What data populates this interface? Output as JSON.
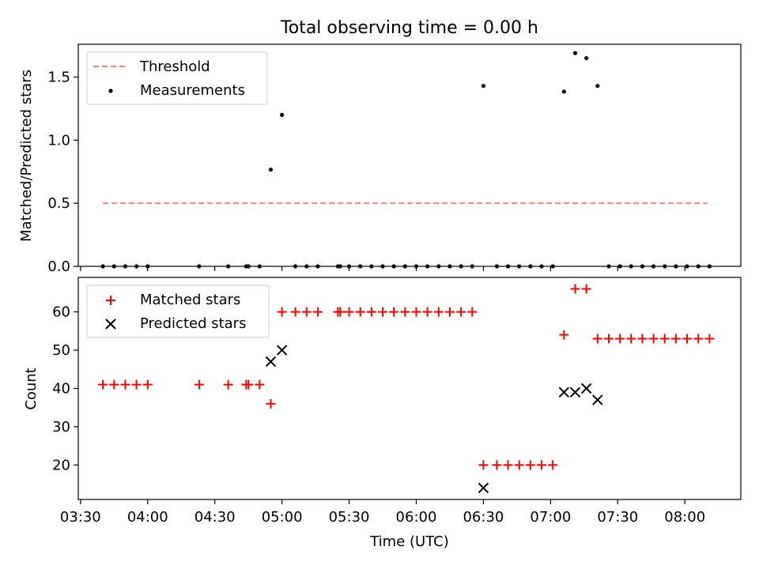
{
  "title": "Total observing time = 0.00 h",
  "chart_data": [
    {
      "type": "scatter",
      "ylabel": "Matched/Predicted stars",
      "ylim": [
        0,
        1.76
      ],
      "xlim": [
        "03:29",
        "08:25"
      ],
      "yticks": [
        0.0,
        0.5,
        1.0,
        1.5
      ],
      "ytick_labels": [
        "0.0",
        "0.5",
        "1.0",
        "1.5"
      ],
      "legend_position": "top-left",
      "threshold": {
        "name": "Threshold",
        "value": 0.5,
        "x_range": [
          "03:40",
          "08:10"
        ],
        "color": "#ff7f7f",
        "style": "dashed"
      },
      "series": [
        {
          "name": "Measurements",
          "marker": "dot",
          "color": "#000000",
          "x": [
            "03:40",
            "03:45",
            "03:50",
            "03:55",
            "04:00",
            "04:23",
            "04:36",
            "04:44",
            "04:45",
            "04:50",
            "04:55",
            "05:00",
            "05:06",
            "05:11",
            "05:16",
            "05:25",
            "05:26",
            "05:30",
            "05:35",
            "05:40",
            "05:45",
            "05:50",
            "05:55",
            "06:00",
            "06:05",
            "06:10",
            "06:15",
            "06:20",
            "06:25",
            "06:30",
            "06:36",
            "06:41",
            "06:46",
            "06:51",
            "06:56",
            "07:01",
            "07:06",
            "07:11",
            "07:16",
            "07:21",
            "07:26",
            "07:31",
            "07:36",
            "07:41",
            "07:46",
            "07:51",
            "07:56",
            "08:01",
            "08:06",
            "08:11"
          ],
          "y": [
            0,
            0,
            0,
            0,
            0,
            0,
            0,
            0,
            0,
            0,
            0.766,
            1.2,
            0,
            0,
            0,
            0,
            0,
            0,
            0,
            0,
            0,
            0,
            0,
            0,
            0,
            0,
            0,
            0,
            0,
            1.43,
            0,
            0,
            0,
            0,
            0,
            0,
            1.385,
            1.69,
            1.65,
            1.43,
            0,
            0,
            0,
            0,
            0,
            0,
            0,
            0,
            0,
            0
          ]
        }
      ]
    },
    {
      "type": "scatter",
      "xlabel": "Time (UTC)",
      "ylabel": "Count",
      "ylim": [
        11,
        69
      ],
      "xlim": [
        "03:29",
        "08:25"
      ],
      "yticks": [
        20,
        30,
        40,
        50,
        60
      ],
      "ytick_labels": [
        "20",
        "30",
        "40",
        "50",
        "60"
      ],
      "xticks": [
        "03:30",
        "04:00",
        "04:30",
        "05:00",
        "05:30",
        "06:00",
        "06:30",
        "07:00",
        "07:30",
        "08:00"
      ],
      "legend_position": "top-left",
      "series": [
        {
          "name": "Matched stars",
          "marker": "plus",
          "color": "#ff0000",
          "x": [
            "03:40",
            "03:45",
            "03:50",
            "03:55",
            "04:00",
            "04:23",
            "04:36",
            "04:44",
            "04:45",
            "04:50",
            "04:55",
            "05:00",
            "05:06",
            "05:11",
            "05:16",
            "05:25",
            "05:26",
            "05:30",
            "05:35",
            "05:40",
            "05:45",
            "05:50",
            "05:55",
            "06:00",
            "06:05",
            "06:10",
            "06:15",
            "06:20",
            "06:25",
            "06:30",
            "06:36",
            "06:41",
            "06:46",
            "06:51",
            "06:56",
            "07:01",
            "07:06",
            "07:11",
            "07:16",
            "07:21",
            "07:26",
            "07:31",
            "07:36",
            "07:41",
            "07:46",
            "07:51",
            "07:56",
            "08:01",
            "08:06",
            "08:11"
          ],
          "y": [
            41,
            41,
            41,
            41,
            41,
            41,
            41,
            41,
            41,
            41,
            36,
            60,
            60,
            60,
            60,
            60,
            60,
            60,
            60,
            60,
            60,
            60,
            60,
            60,
            60,
            60,
            60,
            60,
            60,
            20,
            20,
            20,
            20,
            20,
            20,
            20,
            54,
            66,
            66,
            53,
            53,
            53,
            53,
            53,
            53,
            53,
            53,
            53,
            53,
            53
          ]
        },
        {
          "name": "Predicted stars",
          "marker": "x",
          "color": "#000000",
          "x": [
            "04:55",
            "05:00",
            "06:30",
            "07:06",
            "07:11",
            "07:16",
            "07:21"
          ],
          "y": [
            47,
            50,
            14,
            39,
            39,
            40,
            37
          ]
        }
      ]
    }
  ]
}
